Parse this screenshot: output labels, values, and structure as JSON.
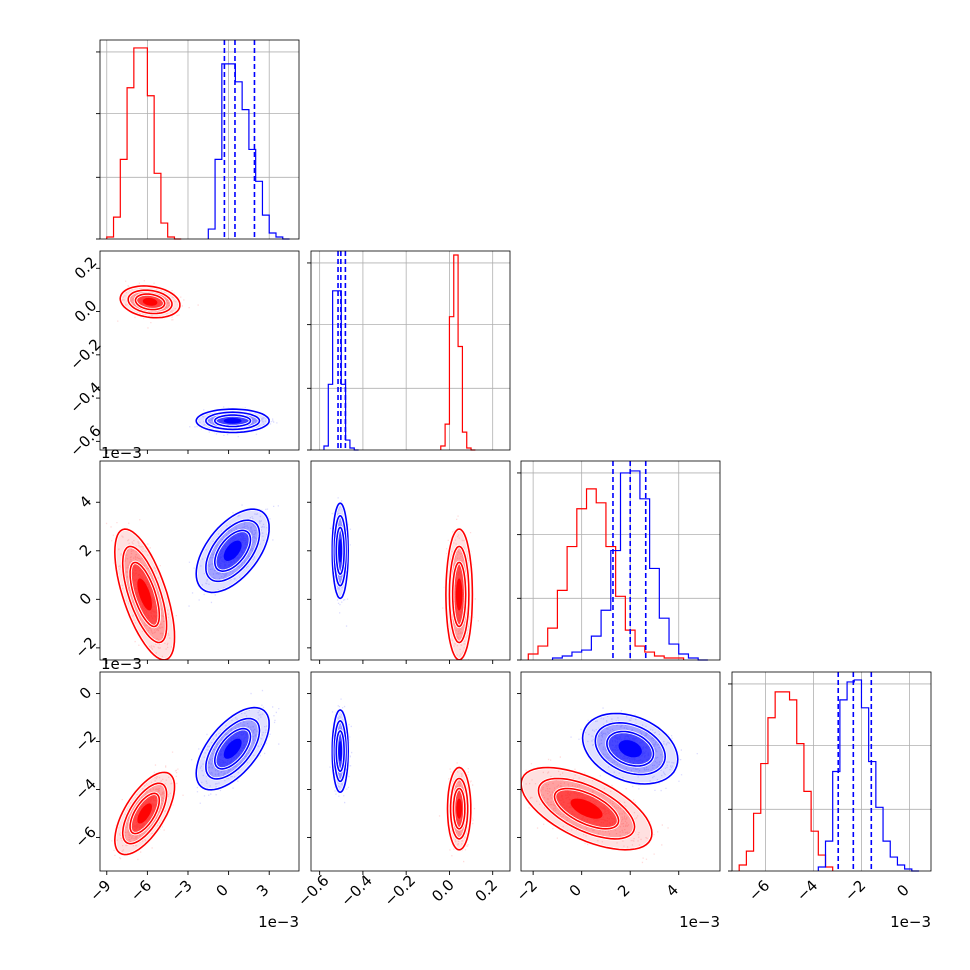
{
  "chart_data": {
    "type": "corner",
    "title": "",
    "series": [
      {
        "name": "",
        "color": "#ff0000"
      },
      {
        "name": "",
        "color": "#0000ff"
      }
    ],
    "parameters": [
      {
        "index": 0,
        "range": [
          -0.0095,
          0.0052
        ],
        "ticks": [
          -0.009,
          -0.006,
          -0.003,
          0.0,
          0.003
        ],
        "tick_labels": [
          "−9",
          "−6",
          "−3",
          "0",
          "3"
        ],
        "offset_text": "1e−3"
      },
      {
        "index": 1,
        "range": [
          -0.64,
          0.28
        ],
        "ticks": [
          -0.6,
          -0.4,
          -0.2,
          0.0,
          0.2
        ],
        "tick_labels": [
          "−0.6",
          "−0.4",
          "−0.2",
          "0.0",
          "0.2"
        ],
        "offset_text": ""
      },
      {
        "index": 2,
        "range": [
          -0.0025,
          0.0057
        ],
        "ticks": [
          -0.002,
          0.0,
          0.002,
          0.004
        ],
        "tick_labels": [
          "−2",
          "0",
          "2",
          "4"
        ],
        "offset_text": "1e−3"
      },
      {
        "index": 3,
        "range": [
          -0.0074,
          0.0009
        ],
        "ticks": [
          -0.006,
          -0.004,
          -0.002,
          0.0
        ],
        "tick_labels": [
          "−6",
          "−4",
          "−2",
          "0"
        ],
        "offset_text": "1e−3"
      }
    ],
    "blue_quantile_lines": [
      [
        -0.00031,
        0.00047,
        0.00191
      ],
      [
        -0.515,
        -0.502,
        -0.481
      ],
      [
        0.00129,
        0.002,
        0.00264
      ],
      [
        -0.00297,
        -0.00234,
        -0.00159
      ]
    ],
    "marginals": [
      {
        "param": 0,
        "red": {
          "bins": [
            -0.009,
            -0.0085,
            -0.008,
            -0.0075,
            -0.007,
            -0.0065,
            -0.006,
            -0.0055,
            -0.005,
            -0.0045,
            -0.004,
            -0.0035
          ],
          "counts": [
            0.01,
            0.11,
            0.4,
            0.76,
            0.96,
            0.96,
            0.72,
            0.33,
            0.08,
            0.01,
            0.0
          ]
        },
        "blue": {
          "bins": [
            -0.0015,
            -0.001,
            -0.0005,
            0.0,
            0.0005,
            0.001,
            0.0015,
            0.002,
            0.0025,
            0.003,
            0.0035,
            0.004,
            0.0045
          ],
          "counts": [
            0.05,
            0.4,
            0.88,
            0.88,
            0.79,
            0.65,
            0.45,
            0.29,
            0.12,
            0.03,
            0.01,
            0.0
          ]
        }
      },
      {
        "param": 1,
        "red": {
          "bins": [
            -0.04,
            -0.02,
            0.0,
            0.02,
            0.04,
            0.06,
            0.08,
            0.1,
            0.12
          ],
          "counts": [
            0.02,
            0.13,
            0.67,
            0.98,
            0.52,
            0.09,
            0.01,
            0.0
          ]
        },
        "blue": {
          "bins": [
            -0.58,
            -0.56,
            -0.54,
            -0.52,
            -0.5,
            -0.48,
            -0.46,
            -0.44,
            -0.42
          ],
          "counts": [
            0.02,
            0.33,
            0.8,
            0.8,
            0.33,
            0.05,
            0.01,
            0.0
          ]
        }
      },
      {
        "param": 2,
        "red": {
          "bins": [
            -0.0022,
            -0.0018,
            -0.0014,
            -0.001,
            -0.0006,
            -0.0002,
            0.0002,
            0.0006,
            0.001,
            0.0014,
            0.0018,
            0.0022,
            0.0026,
            0.003,
            0.0034,
            0.0038,
            0.0042
          ],
          "counts": [
            0.03,
            0.07,
            0.16,
            0.35,
            0.57,
            0.76,
            0.86,
            0.79,
            0.57,
            0.32,
            0.15,
            0.07,
            0.04,
            0.02,
            0.01,
            0.01
          ]
        },
        "blue": {
          "bins": [
            -0.0012,
            -0.0008,
            -0.0004,
            0.0,
            0.0004,
            0.0008,
            0.0012,
            0.0016,
            0.002,
            0.0024,
            0.0028,
            0.0032,
            0.0036,
            0.004,
            0.0044,
            0.0048,
            0.0052
          ],
          "counts": [
            0.01,
            0.02,
            0.04,
            0.05,
            0.12,
            0.25,
            0.55,
            0.94,
            0.95,
            0.81,
            0.46,
            0.21,
            0.08,
            0.03,
            0.01,
            0.0
          ]
        }
      },
      {
        "param": 3,
        "red": {
          "bins": [
            -0.0071,
            -0.0068,
            -0.0065,
            -0.0062,
            -0.0059,
            -0.0056,
            -0.0053,
            -0.005,
            -0.0047,
            -0.0044,
            -0.0041,
            -0.0038,
            -0.0035,
            -0.0032
          ],
          "counts": [
            0.03,
            0.1,
            0.29,
            0.54,
            0.77,
            0.9,
            0.9,
            0.86,
            0.64,
            0.4,
            0.2,
            0.08,
            0.02
          ]
        },
        "blue": {
          "bins": [
            -0.0038,
            -0.0035,
            -0.0032,
            -0.0029,
            -0.0026,
            -0.0023,
            -0.002,
            -0.0017,
            -0.0014,
            -0.0011,
            -0.0008,
            -0.0005,
            -0.0002,
            0.0001,
            0.0004
          ],
          "counts": [
            0.02,
            0.15,
            0.5,
            0.86,
            0.95,
            0.96,
            0.82,
            0.55,
            0.32,
            0.15,
            0.07,
            0.03,
            0.01,
            0.0
          ]
        }
      }
    ],
    "joint_panels": [
      {
        "x_param": 0,
        "y_param": 1,
        "red": {
          "mean": [
            -0.0058,
            0.045
          ],
          "sd": [
            0.0009,
            0.03
          ],
          "rho": -0.2
        },
        "blue": {
          "mean": [
            0.0003,
            -0.505
          ],
          "sd": [
            0.0011,
            0.022
          ],
          "rho": 0.0
        }
      },
      {
        "x_param": 0,
        "y_param": 2,
        "red": {
          "mean": [
            -0.0062,
            0.0002
          ],
          "sd": [
            0.0009,
            0.0011
          ],
          "rho": -0.65
        },
        "blue": {
          "mean": [
            0.0003,
            0.002
          ],
          "sd": [
            0.0011,
            0.0007
          ],
          "rho": 0.55
        }
      },
      {
        "x_param": 1,
        "y_param": 2,
        "red": {
          "mean": [
            0.045,
            0.0002
          ],
          "sd": [
            0.025,
            0.0011
          ],
          "rho": 0.0
        },
        "blue": {
          "mean": [
            -0.505,
            0.002
          ],
          "sd": [
            0.015,
            0.0008
          ],
          "rho": 0.0
        }
      },
      {
        "x_param": 0,
        "y_param": 3,
        "red": {
          "mean": [
            -0.0062,
            -0.005
          ],
          "sd": [
            0.0009,
            0.0007
          ],
          "rho": 0.65
        },
        "blue": {
          "mean": [
            0.0003,
            -0.0023
          ],
          "sd": [
            0.0011,
            0.0007
          ],
          "rho": 0.6
        }
      },
      {
        "x_param": 1,
        "y_param": 3,
        "red": {
          "mean": [
            0.045,
            -0.0048
          ],
          "sd": [
            0.022,
            0.0007
          ],
          "rho": 0.0
        },
        "blue": {
          "mean": [
            -0.505,
            -0.0024
          ],
          "sd": [
            0.015,
            0.0007
          ],
          "rho": 0.0
        }
      },
      {
        "x_param": 2,
        "y_param": 3,
        "red": {
          "mean": [
            0.0002,
            -0.0048
          ],
          "sd": [
            0.0011,
            0.0007
          ],
          "rho": -0.6
        },
        "blue": {
          "mean": [
            0.002,
            -0.0023
          ],
          "sd": [
            0.0008,
            0.0006
          ],
          "rho": -0.3
        }
      }
    ],
    "grid": true,
    "legend": "none",
    "xlabel": "",
    "ylabel": ""
  }
}
